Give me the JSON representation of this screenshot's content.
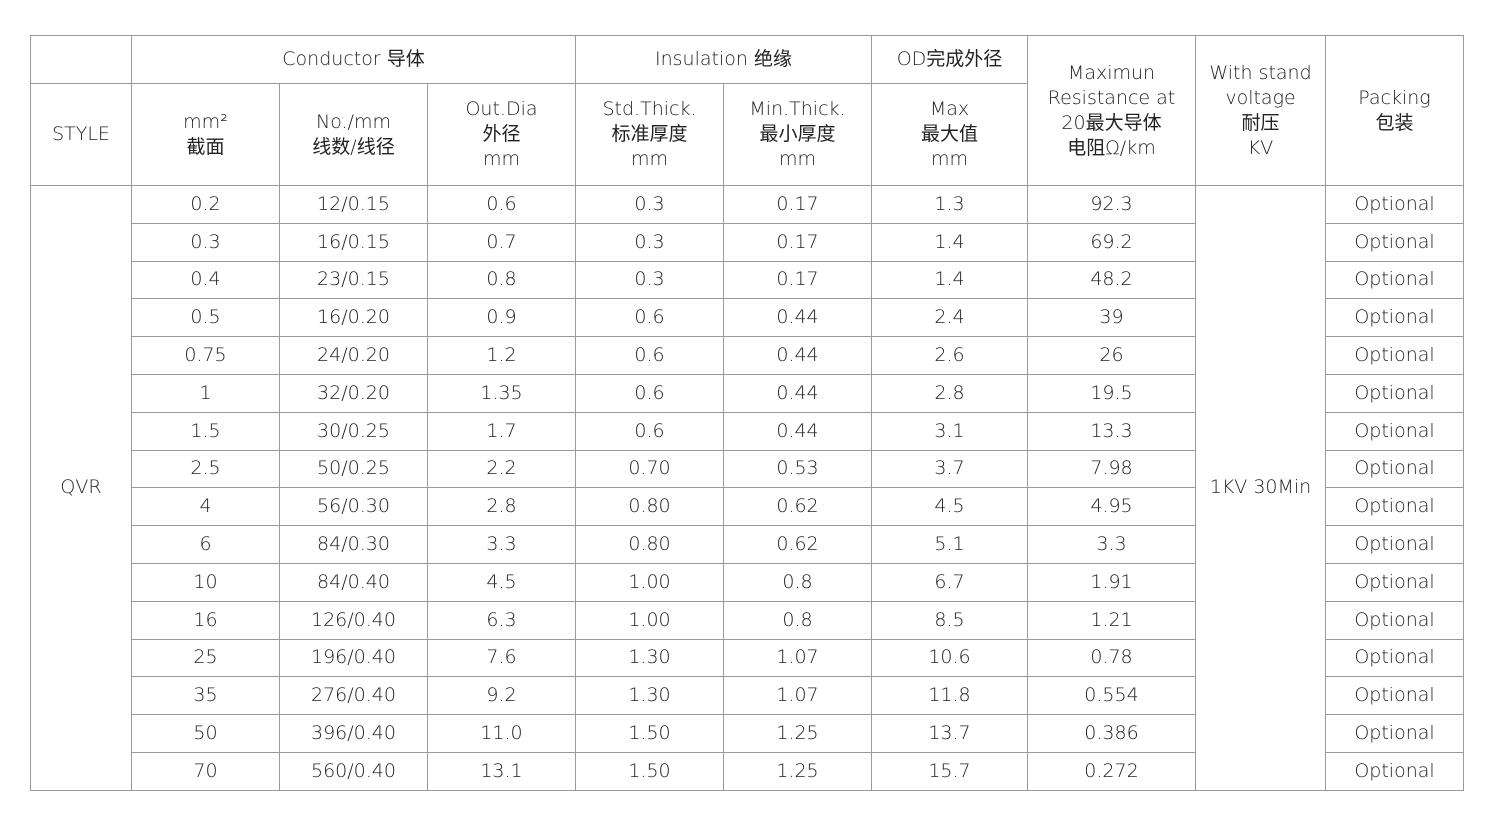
{
  "header": {
    "style": "STYLE",
    "conductor": "Conductor 导体",
    "insulation": "Insulation 绝缘",
    "od": "OD完成外径",
    "resistance": [
      "Maximun",
      "Resistance at",
      "20最大导体",
      "电阻Ω/km"
    ],
    "voltage": [
      "With stand",
      "voltage",
      "耐压",
      "KV"
    ],
    "packing": [
      "Packing",
      "包装"
    ],
    "area": [
      "mm²",
      "截面"
    ],
    "strands": [
      "No./mm",
      "线数/线径"
    ],
    "out_dia": [
      "Out.Dia",
      "外径",
      "mm"
    ],
    "std_thick": [
      "Std.Thick.",
      "标准厚度",
      "mm"
    ],
    "min_thick": [
      "Min.Thick.",
      "最小厚度",
      "mm"
    ],
    "od_max": [
      "Max",
      "最大值",
      "mm"
    ]
  },
  "style_value": "QVR",
  "voltage_value": "1KV 30Min",
  "rows": [
    [
      "0.2",
      "12/0.15",
      "0.6",
      "0.3",
      "0.17",
      "1.3",
      "92.3",
      "Optional"
    ],
    [
      "0.3",
      "16/0.15",
      "0.7",
      "0.3",
      "0.17",
      "1.4",
      "69.2",
      "Optional"
    ],
    [
      "0.4",
      "23/0.15",
      "0.8",
      "0.3",
      "0.17",
      "1.4",
      "48.2",
      "Optional"
    ],
    [
      "0.5",
      "16/0.20",
      "0.9",
      "0.6",
      "0.44",
      "2.4",
      "39",
      "Optional"
    ],
    [
      "0.75",
      "24/0.20",
      "1.2",
      "0.6",
      "0.44",
      "2.6",
      "26",
      "Optional"
    ],
    [
      "1",
      "32/0.20",
      "1.35",
      "0.6",
      "0.44",
      "2.8",
      "19.5",
      "Optional"
    ],
    [
      "1.5",
      "30/0.25",
      "1.7",
      "0.6",
      "0.44",
      "3.1",
      "13.3",
      "Optional"
    ],
    [
      "2.5",
      "50/0.25",
      "2.2",
      "0.70",
      "0.53",
      "3.7",
      "7.98",
      "Optional"
    ],
    [
      "4",
      "56/0.30",
      "2.8",
      "0.80",
      "0.62",
      "4.5",
      "4.95",
      "Optional"
    ],
    [
      "6",
      "84/0.30",
      "3.3",
      "0.80",
      "0.62",
      "5.1",
      "3.3",
      "Optional"
    ],
    [
      "10",
      "84/0.40",
      "4.5",
      "1.00",
      "0.8",
      "6.7",
      "1.91",
      "Optional"
    ],
    [
      "16",
      "126/0.40",
      "6.3",
      "1.00",
      "0.8",
      "8.5",
      "1.21",
      "Optional"
    ],
    [
      "25",
      "196/0.40",
      "7.6",
      "1.30",
      "1.07",
      "10.6",
      "0.78",
      "Optional"
    ],
    [
      "35",
      "276/0.40",
      "9.2",
      "1.30",
      "1.07",
      "11.8",
      "0.554",
      "Optional"
    ],
    [
      "50",
      "396/0.40",
      "11.0",
      "1.50",
      "1.25",
      "13.7",
      "0.386",
      "Optional"
    ],
    [
      "70",
      "560/0.40",
      "13.1",
      "1.50",
      "1.25",
      "15.7",
      "0.272",
      "Optional"
    ]
  ]
}
